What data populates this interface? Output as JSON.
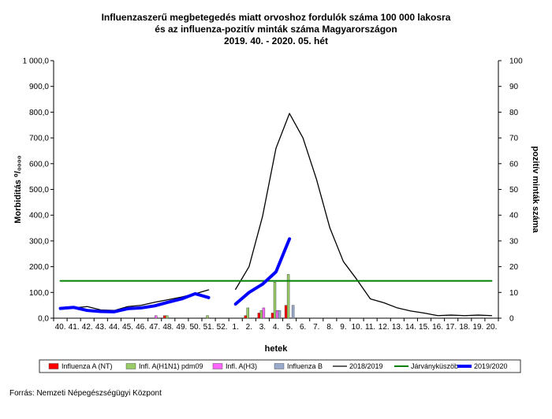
{
  "chart_data": {
    "type": "line",
    "title": [
      "Influenzaszerű megbetegedés miatt orvoshoz fordulók száma 100 000 lakosra",
      "és az influenza-pozitív minták száma Magyarországon",
      "2019. 40. - 2020. 05. hét"
    ],
    "xlabel": "hetek",
    "ylabel_left": "Morbiditás ⁰/₀₀₀₀",
    "ylabel_right": "pozitív minták száma",
    "ylim_left": [
      0,
      1000
    ],
    "ylim_right": [
      0,
      100
    ],
    "yticks_left": [
      "0,0",
      "100,0",
      "200,0",
      "300,0",
      "400,0",
      "500,0",
      "600,0",
      "700,0",
      "800,0",
      "900,0",
      "1 000,0"
    ],
    "yticks_right": [
      "0",
      "10",
      "20",
      "30",
      "40",
      "50",
      "60",
      "70",
      "80",
      "90",
      "100"
    ],
    "categories": [
      "40.",
      "41.",
      "42.",
      "43.",
      "44.",
      "45.",
      "46.",
      "47.",
      "48.",
      "49.",
      "50.",
      "51.",
      "52.",
      "1.",
      "2.",
      "3.",
      "4.",
      "5.",
      "6.",
      "7.",
      "8.",
      "9.",
      "10.",
      "11.",
      "12.",
      "13.",
      "14.",
      "15.",
      "16.",
      "17.",
      "18.",
      "19.",
      "20."
    ],
    "lines": [
      {
        "name": "2018/2019",
        "color": "#000000",
        "width": 1.3,
        "values": [
          35,
          40,
          45,
          32,
          30,
          45,
          50,
          62,
          72,
          82,
          95,
          110,
          null,
          112,
          200,
          395,
          660,
          795,
          700,
          540,
          350,
          220,
          150,
          75,
          60,
          40,
          28,
          20,
          10,
          12,
          10,
          12,
          10
        ]
      },
      {
        "name": "Járványküszöb",
        "color": "#008000",
        "width": 2,
        "values": [
          145,
          145,
          145,
          145,
          145,
          145,
          145,
          145,
          145,
          145,
          145,
          145,
          145,
          145,
          145,
          145,
          145,
          145,
          145,
          145,
          145,
          145,
          145,
          145,
          145,
          145,
          145,
          145,
          145,
          145,
          145,
          145,
          145
        ]
      },
      {
        "name": "2019/2020",
        "color": "#0000ff",
        "width": 4,
        "values": [
          38,
          42,
          30,
          26,
          25,
          37,
          40,
          48,
          62,
          75,
          95,
          80,
          null,
          55,
          100,
          132,
          180,
          308,
          null,
          null,
          null,
          null,
          null,
          null,
          null,
          null,
          null,
          null,
          null,
          null,
          null,
          null,
          null
        ]
      }
    ],
    "bars": [
      {
        "name": "Influenza A (NT)",
        "color": "#ff0000",
        "values": [
          0,
          0,
          0,
          0,
          0,
          0,
          0,
          0,
          1,
          0,
          0,
          0,
          0,
          0,
          1,
          2,
          2,
          5,
          0,
          0,
          0,
          0,
          0,
          0,
          0,
          0,
          0,
          0,
          0,
          0,
          0,
          0,
          0
        ]
      },
      {
        "name": "Infl. A(H1N1) pdm09",
        "color": "#99cc66",
        "values": [
          0,
          0,
          0,
          0,
          0,
          0,
          0,
          0,
          1,
          0,
          0,
          1,
          0,
          0,
          4,
          3,
          14,
          17,
          0,
          0,
          0,
          0,
          0,
          0,
          0,
          0,
          0,
          0,
          0,
          0,
          0,
          0,
          0
        ]
      },
      {
        "name": "Infl. A(H3)",
        "color": "#ff66ff",
        "values": [
          0,
          0,
          0,
          0,
          0,
          0,
          0,
          1,
          0,
          0,
          0,
          0,
          0,
          0,
          0,
          4,
          3,
          0,
          0,
          0,
          0,
          0,
          0,
          0,
          0,
          0,
          0,
          0,
          0,
          0,
          0,
          0,
          0
        ]
      },
      {
        "name": "Influenza B",
        "color": "#99aacc",
        "values": [
          0,
          0,
          0,
          0,
          0,
          0,
          0,
          0,
          0,
          0,
          0,
          0,
          0,
          0,
          0,
          0,
          3,
          5,
          0,
          0,
          0,
          0,
          0,
          0,
          0,
          0,
          0,
          0,
          0,
          0,
          0,
          0,
          0
        ]
      }
    ],
    "legend_position": "bottom",
    "grid": false
  },
  "source": "Forrás: Nemzeti Népegészségügyi Központ"
}
